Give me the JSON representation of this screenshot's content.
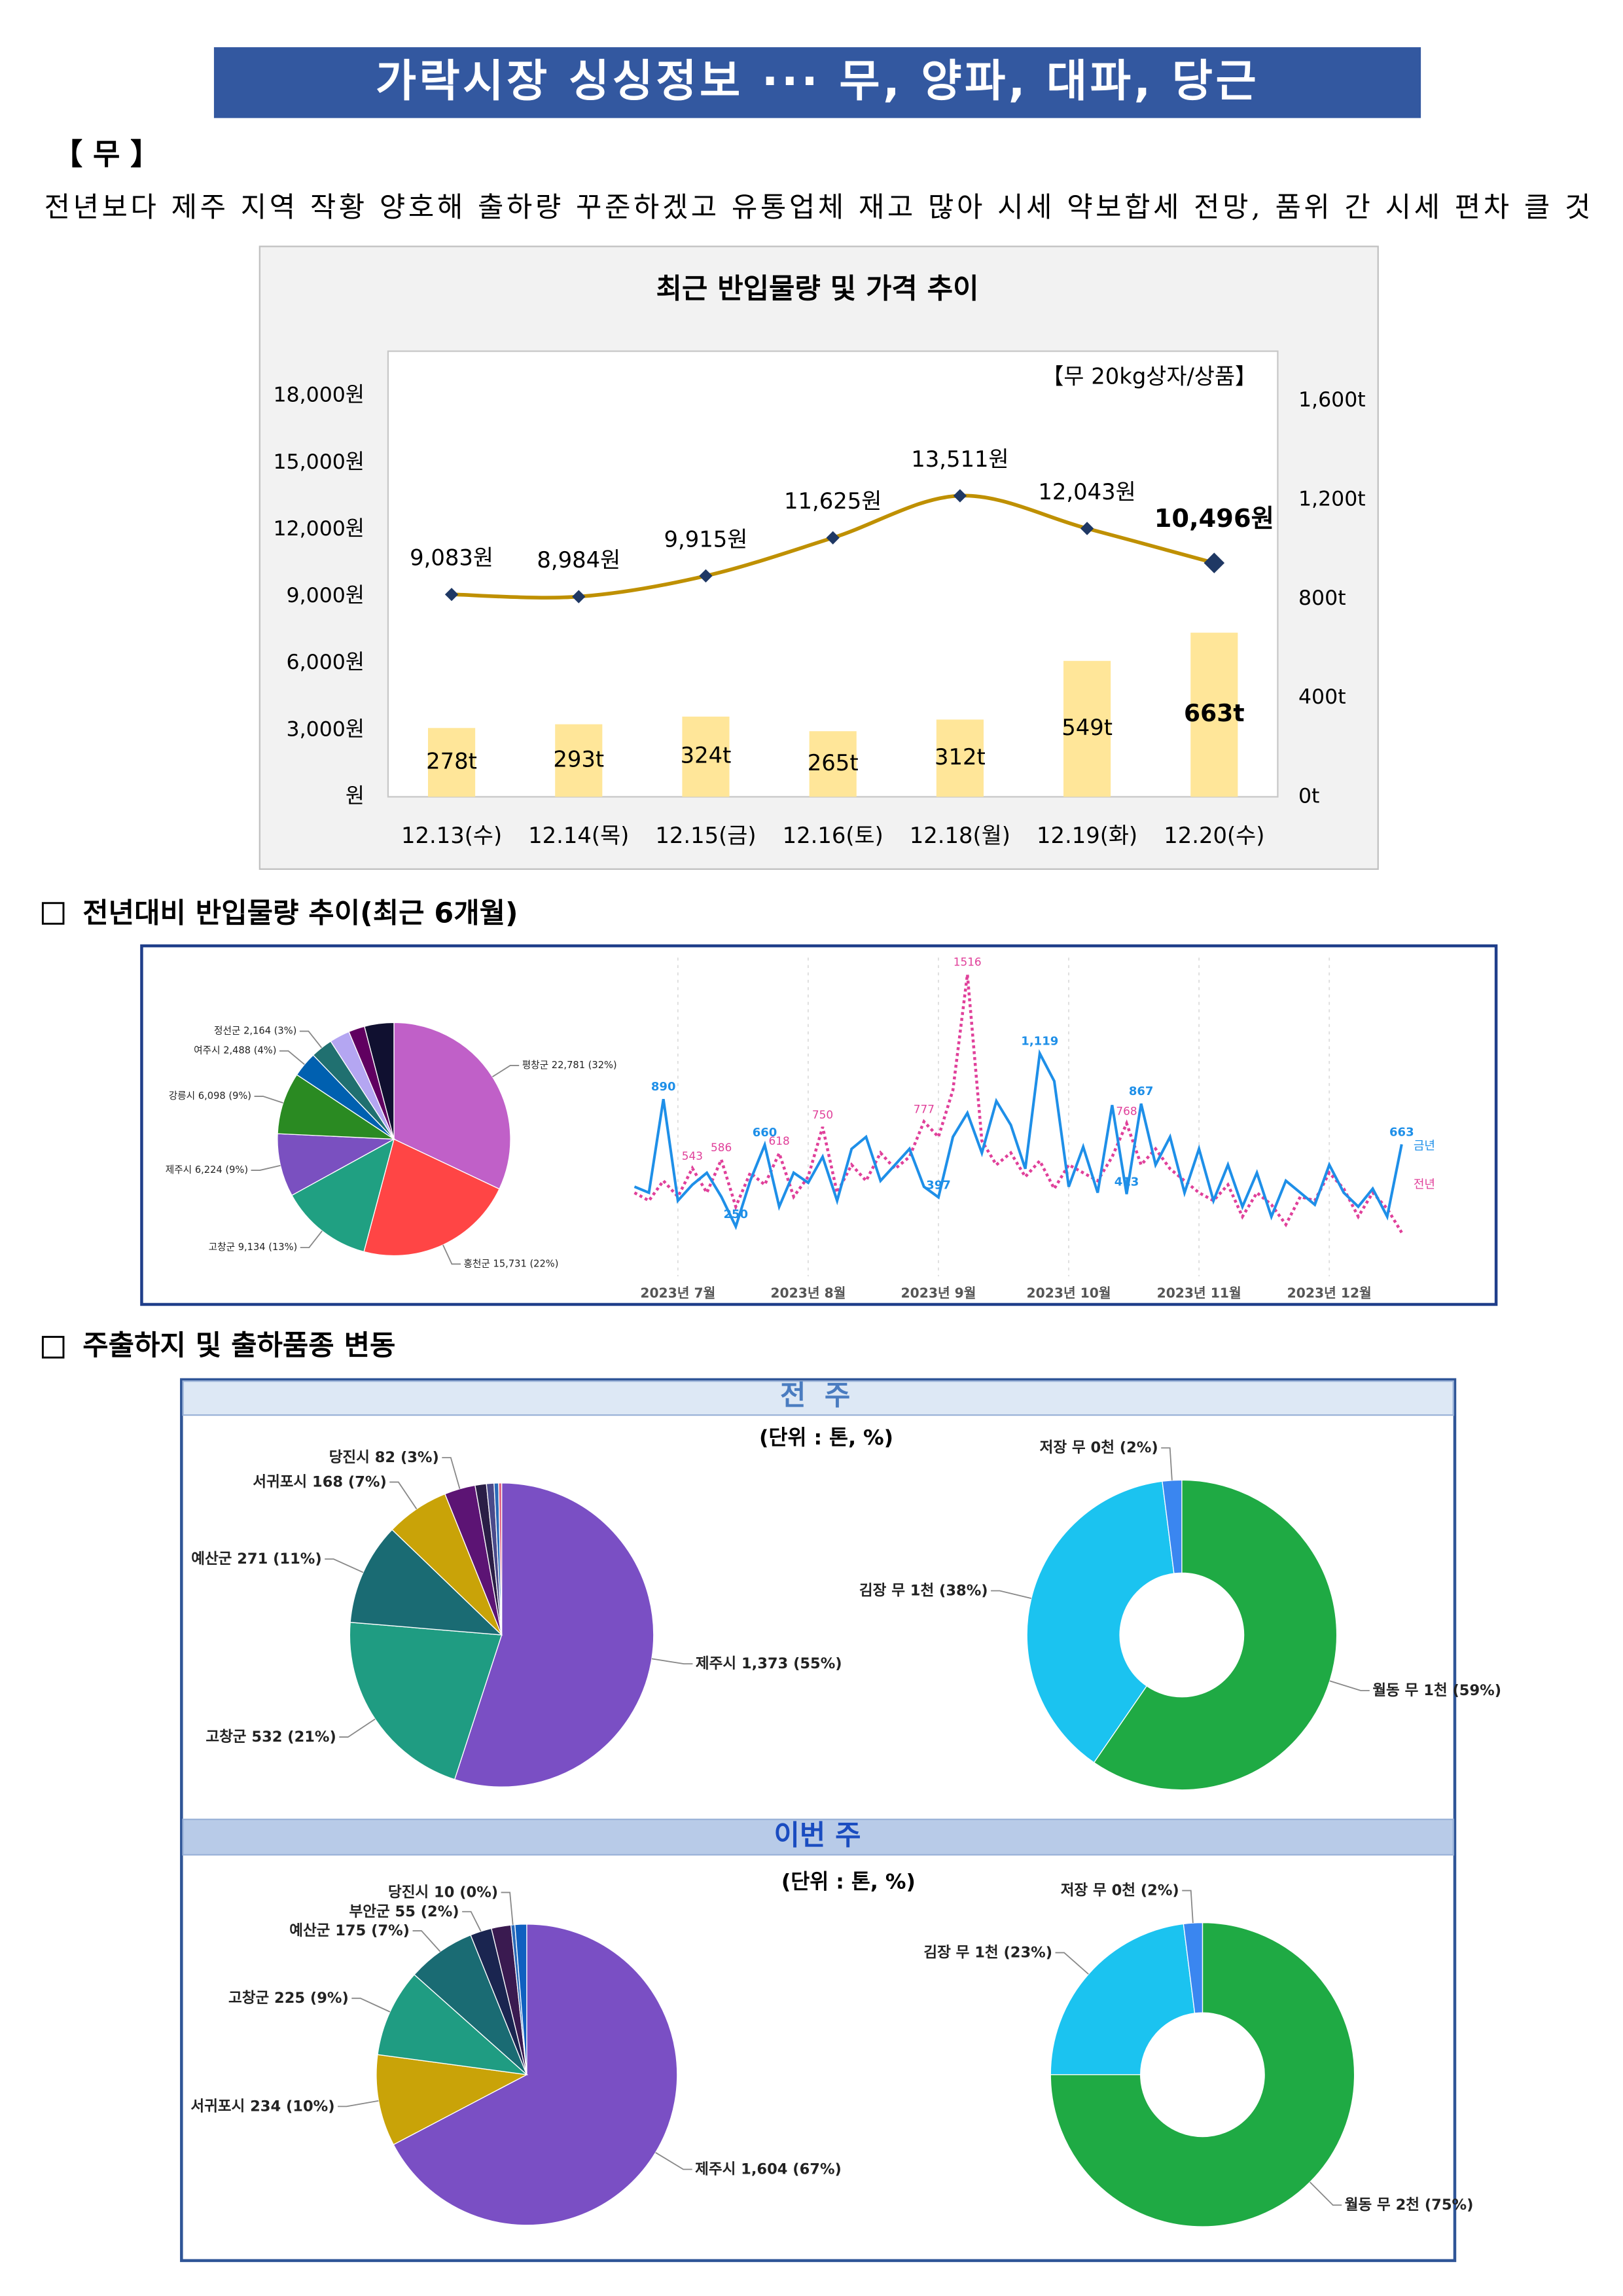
{
  "header": {
    "title": "가락시장 싱싱정보 ··· 무, 양파, 대파, 당근"
  },
  "item": {
    "heading": "【 무 】",
    "summary": "전년보다 제주 지역 작황 양호해 출하량 꾸준하겠고 유통업체 재고 많아 시세 약보합세 전망, 품위 간 시세 편차 클 것"
  },
  "sections": [
    "전년대비 반입물량 추이(최근 6개월)",
    "주출하지 및 출하품종 변동"
  ],
  "panels": {
    "last_week": "전 주",
    "this_week": "이번 주",
    "unit": "(단위 : 톤, %)"
  },
  "chart_data": [
    {
      "type": "combo",
      "title": "최근 반입물량 및 가격 추이",
      "annotation": "【무 20kg상자/상품】",
      "categories": [
        "12.13(수)",
        "12.14(목)",
        "12.15(금)",
        "12.16(토)",
        "12.18(월)",
        "12.19(화)",
        "12.20(수)"
      ],
      "series": [
        {
          "type": "bar",
          "axis": "y2",
          "color": "#ffe699",
          "values": [
            278,
            293,
            324,
            265,
            312,
            549,
            663
          ],
          "value_labels": [
            "278t",
            "293t",
            "324t",
            "265t",
            "312t",
            "549t",
            "663t"
          ]
        },
        {
          "type": "line",
          "color": "#bf9000",
          "marker_color": "#1f3864",
          "values": [
            9083,
            8984,
            9915,
            11625,
            13511,
            12043,
            10496
          ],
          "value_labels": [
            "9,083원",
            "8,984원",
            "9,915원",
            "11,625원",
            "13,511원",
            "12,043원",
            "10,496원"
          ]
        }
      ],
      "ylim": [
        0,
        20000
      ],
      "yticks": [
        {
          "value": 0,
          "label": "원"
        },
        {
          "value": 3000,
          "label": "3,000원"
        },
        {
          "value": 6000,
          "label": "6,000원"
        },
        {
          "value": 9000,
          "label": "9,000원"
        },
        {
          "value": 12000,
          "label": "12,000원"
        },
        {
          "value": 15000,
          "label": "15,000원"
        },
        {
          "value": 18000,
          "label": "18,000원"
        }
      ],
      "y2lim": [
        0,
        1800
      ],
      "y2ticks": [
        {
          "value": 0,
          "label": "0t"
        },
        {
          "value": 400,
          "label": "400t"
        },
        {
          "value": 800,
          "label": "800t"
        },
        {
          "value": 1200,
          "label": "1,200t"
        },
        {
          "value": 1600,
          "label": "1,600t"
        }
      ]
    },
    {
      "type": "pie",
      "categories": [
        "평창군",
        "홍천군",
        "고창군",
        "제주시",
        "강릉시",
        "여주시",
        "정선군",
        null,
        null,
        null
      ],
      "values": [
        22781,
        15731,
        9134,
        6224,
        6098,
        2488,
        2164,
        2000,
        1600,
        2900
      ],
      "value_labels": [
        "22,781 (32%)",
        "15,731 (22%)",
        "9,134 (13%)",
        "6,224 (9%)",
        "6,098 (9%)",
        "2,488 (4%)",
        "2,164 (3%)",
        null,
        null,
        null
      ],
      "colors": [
        "#c060c8",
        "#ff4545",
        "#20a082",
        "#7a50c0",
        "#2a8a22",
        "#0060b0",
        "#207070",
        "#b4a6f2",
        "#600060",
        "#101030"
      ]
    },
    {
      "type": "line",
      "categories": [
        null,
        null,
        null,
        "2023년 7월",
        null,
        null,
        null,
        null,
        null,
        null,
        null,
        null,
        "2023년 8월",
        null,
        null,
        null,
        null,
        null,
        null,
        null,
        null,
        "2023년 9월",
        null,
        null,
        null,
        null,
        null,
        null,
        null,
        null,
        "2023년 10월",
        null,
        null,
        null,
        null,
        null,
        null,
        null,
        null,
        "2023년 11월",
        null,
        null,
        null,
        null,
        null,
        null,
        null,
        null,
        "2023년 12월",
        null,
        null,
        null,
        null,
        null
      ],
      "ylim": [
        0,
        1600
      ],
      "series": [
        {
          "name": "금년",
          "color": "#1e8fe8",
          "values": [
            450,
            420,
            890,
            380,
            460,
            520,
            400,
            250,
            480,
            660,
            350,
            520,
            470,
            600,
            380,
            640,
            700,
            480,
            560,
            640,
            450,
            397,
            700,
            820,
            620,
            880,
            760,
            540,
            1119,
            980,
            450,
            650,
            420,
            860,
            413,
            867,
            560,
            700,
            420,
            640,
            380,
            560,
            350,
            520,
            300,
            480,
            420,
            360,
            560,
            420,
            350,
            440,
            300,
            663
          ],
          "value_labels": [
            null,
            null,
            "890",
            null,
            null,
            null,
            null,
            "250",
            null,
            "660",
            null,
            null,
            null,
            null,
            null,
            null,
            null,
            null,
            null,
            null,
            null,
            "397",
            null,
            null,
            null,
            null,
            null,
            null,
            "1,119",
            null,
            null,
            null,
            null,
            null,
            "413",
            "867",
            null,
            null,
            null,
            null,
            null,
            null,
            null,
            null,
            null,
            null,
            null,
            null,
            null,
            null,
            null,
            null,
            null,
            "663"
          ]
        },
        {
          "name": "전년",
          "color": "#e0409a",
          "values": [
            420,
            380,
            480,
            400,
            543,
            420,
            586,
            350,
            520,
            460,
            618,
            400,
            500,
            750,
            420,
            560,
            480,
            620,
            540,
            600,
            777,
            700,
            935,
            1516,
            680,
            560,
            620,
            500,
            580,
            440,
            560,
            520,
            480,
            600,
            768,
            560,
            640,
            540,
            480,
            420,
            380,
            460,
            300,
            420,
            360,
            260,
            400,
            380,
            520,
            440,
            300,
            420,
            340,
            220
          ],
          "value_labels": [
            null,
            null,
            null,
            null,
            "543",
            null,
            "586",
            null,
            null,
            null,
            "618",
            null,
            null,
            "750",
            null,
            null,
            null,
            null,
            null,
            null,
            "777",
            null,
            null,
            "1516",
            null,
            null,
            null,
            null,
            null,
            null,
            null,
            null,
            null,
            null,
            "768",
            null,
            null,
            null,
            null,
            null,
            null,
            null,
            null,
            null,
            null,
            null,
            null,
            null,
            null,
            null,
            null,
            null,
            null,
            null
          ]
        }
      ]
    },
    {
      "type": "pie",
      "categories": [
        "제주시",
        "고창군",
        "예산군",
        "서귀포시",
        "당진시",
        null,
        null,
        null,
        null
      ],
      "values": [
        1373,
        532,
        271,
        168,
        82,
        30,
        20,
        12,
        8
      ],
      "value_labels": [
        "1,373 (55%)",
        "532 (21%)",
        "271 (11%)",
        "168 (7%)",
        "82 (3%)",
        null,
        null,
        null,
        null
      ],
      "colors": [
        "#7a4fc4",
        "#1f9c82",
        "#1a6b73",
        "#c9a308",
        "#5c1474",
        "#2a1e46",
        "#4a4a8a",
        "#2a6ab8",
        "#e06080"
      ]
    },
    {
      "type": "donut",
      "categories": [
        "월동 무 1천",
        "김장 무 1천",
        "저장 무 0천"
      ],
      "values": [
        59,
        38,
        2
      ],
      "value_labels": [
        "(59%)",
        "(38%)",
        "(2%)"
      ],
      "colors": [
        "#1faa44",
        "#1bc3f0",
        "#3a86f0"
      ]
    },
    {
      "type": "pie",
      "categories": [
        "제주시",
        "서귀포시",
        "고창군",
        "예산군",
        "부안군",
        null,
        "당진시",
        null
      ],
      "values": [
        1604,
        234,
        225,
        175,
        55,
        50,
        10,
        30
      ],
      "value_labels": [
        "1,604 (67%)",
        "234 (10%)",
        "225 (9%)",
        "175 (7%)",
        "55 (2%)",
        null,
        "10 (0%)",
        null
      ],
      "colors": [
        "#7a4fc4",
        "#c9a308",
        "#1f9c82",
        "#1a6b73",
        "#1a2550",
        "#3a1a50",
        "#2a6ab8",
        "#1060c0"
      ]
    },
    {
      "type": "donut",
      "categories": [
        "월동 무 2천",
        "김장 무 1천",
        "저장 무 0천"
      ],
      "values": [
        75,
        23,
        2
      ],
      "value_labels": [
        "(75%)",
        "(23%)",
        "(2%)"
      ],
      "colors": [
        "#1faa44",
        "#1bc3f0",
        "#3a86f0"
      ]
    }
  ]
}
